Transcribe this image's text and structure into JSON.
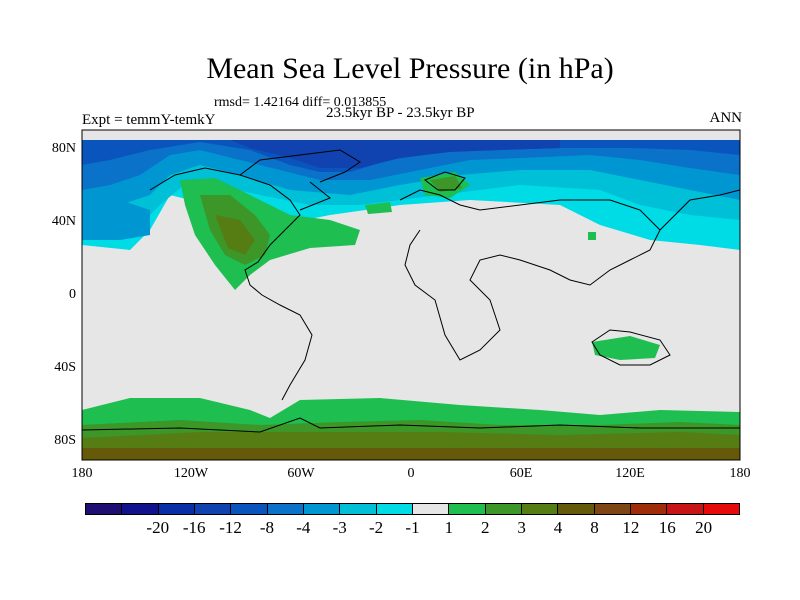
{
  "title": "Mean Sea Level Pressure (in hPa)",
  "stats": "rmsd= 1.42164 diff= 0.013855",
  "period": "23.5kyr BP - 23.5kyr BP",
  "experiment": "Expt = temmY-temkY",
  "season": "ANN",
  "y_ticks": [
    "80N",
    "40N",
    "0",
    "40S",
    "80S"
  ],
  "x_ticks": [
    "180",
    "120W",
    "60W",
    "0",
    "60E",
    "120E",
    "180"
  ],
  "colorbar": {
    "labels": [
      "-20",
      "-16",
      "-12",
      "-8",
      "-4",
      "-3",
      "-2",
      "-1",
      "1",
      "2",
      "3",
      "4",
      "8",
      "12",
      "16",
      "20"
    ],
    "colors": [
      "#1f0f73",
      "#12128e",
      "#0a2ea6",
      "#1143b0",
      "#0a55bd",
      "#0a72c8",
      "#0096d2",
      "#00c0d8",
      "#00dce6",
      "#e6e6e6",
      "#1ebe50",
      "#3c9628",
      "#557d14",
      "#645a0a",
      "#7d4614",
      "#a02d0a",
      "#c81414",
      "#e60a0a"
    ]
  }
}
